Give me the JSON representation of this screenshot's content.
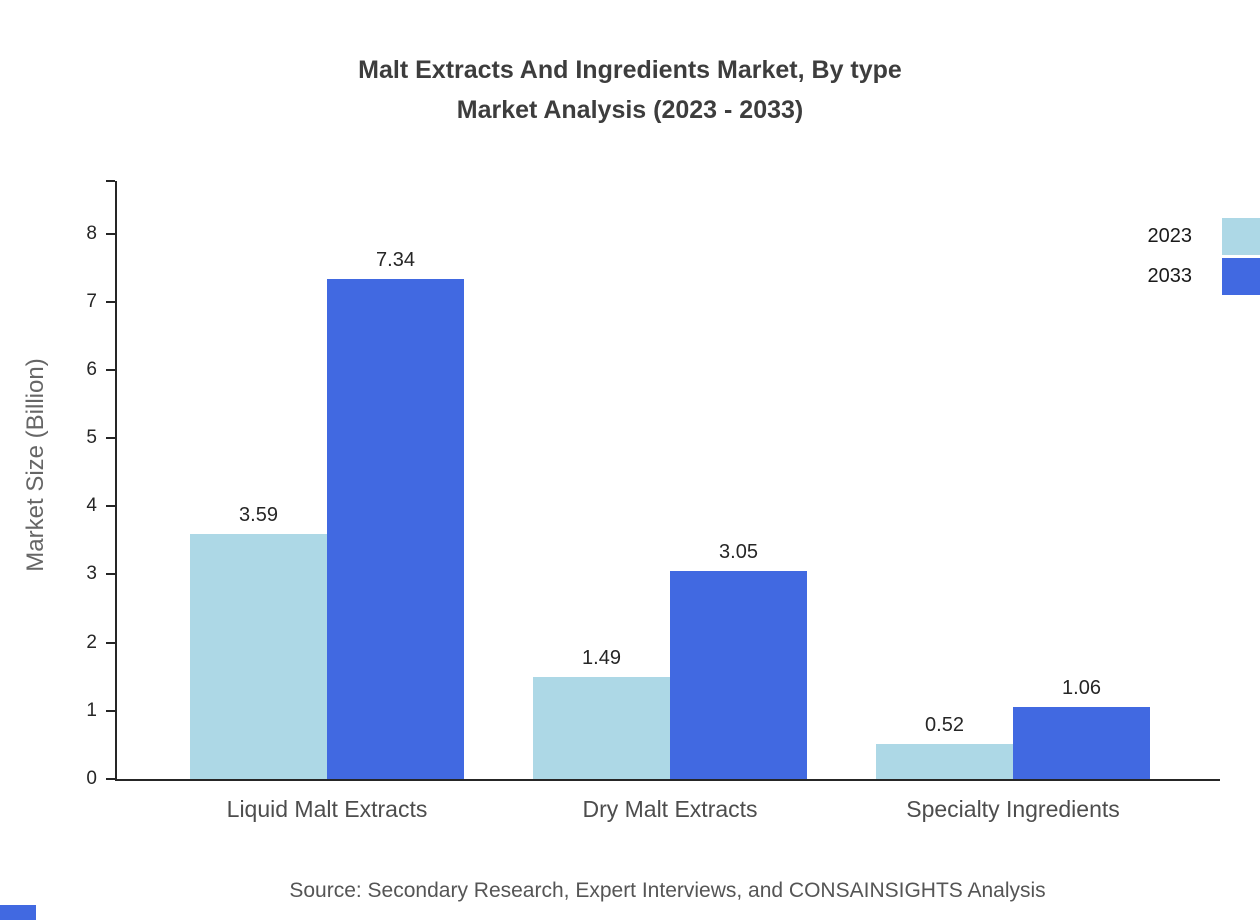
{
  "chart_data": {
    "type": "bar",
    "title": "Malt Extracts And Ingredients Market, By type Market Analysis (2023 - 2033)",
    "title_lines": [
      "Malt Extracts And Ingredients Market, By type",
      "Market Analysis (2023 - 2033)"
    ],
    "categories": [
      "Liquid Malt Extracts",
      "Dry Malt Extracts",
      "Specialty Ingredients"
    ],
    "series": [
      {
        "name": "2023",
        "color": "#add8e6",
        "values": [
          3.59,
          1.49,
          0.52
        ]
      },
      {
        "name": "2033",
        "color": "#4169e1",
        "values": [
          7.34,
          3.05,
          1.06
        ]
      }
    ],
    "xlabel": "",
    "ylabel": "Market Size (Billion)",
    "ylim": [
      0,
      8.8
    ],
    "yticks": [
      0,
      1,
      2,
      3,
      4,
      5,
      6,
      7,
      8
    ],
    "legend_position": "top-right",
    "grid": false
  },
  "colors": {
    "series_2023": "#add8e6",
    "series_2033": "#4169e1",
    "axis": "#262626",
    "accent_corner": "#4169e1"
  },
  "source_note": "Source: Secondary Research, Expert Interviews, and CONSAINSIGHTS Analysis"
}
